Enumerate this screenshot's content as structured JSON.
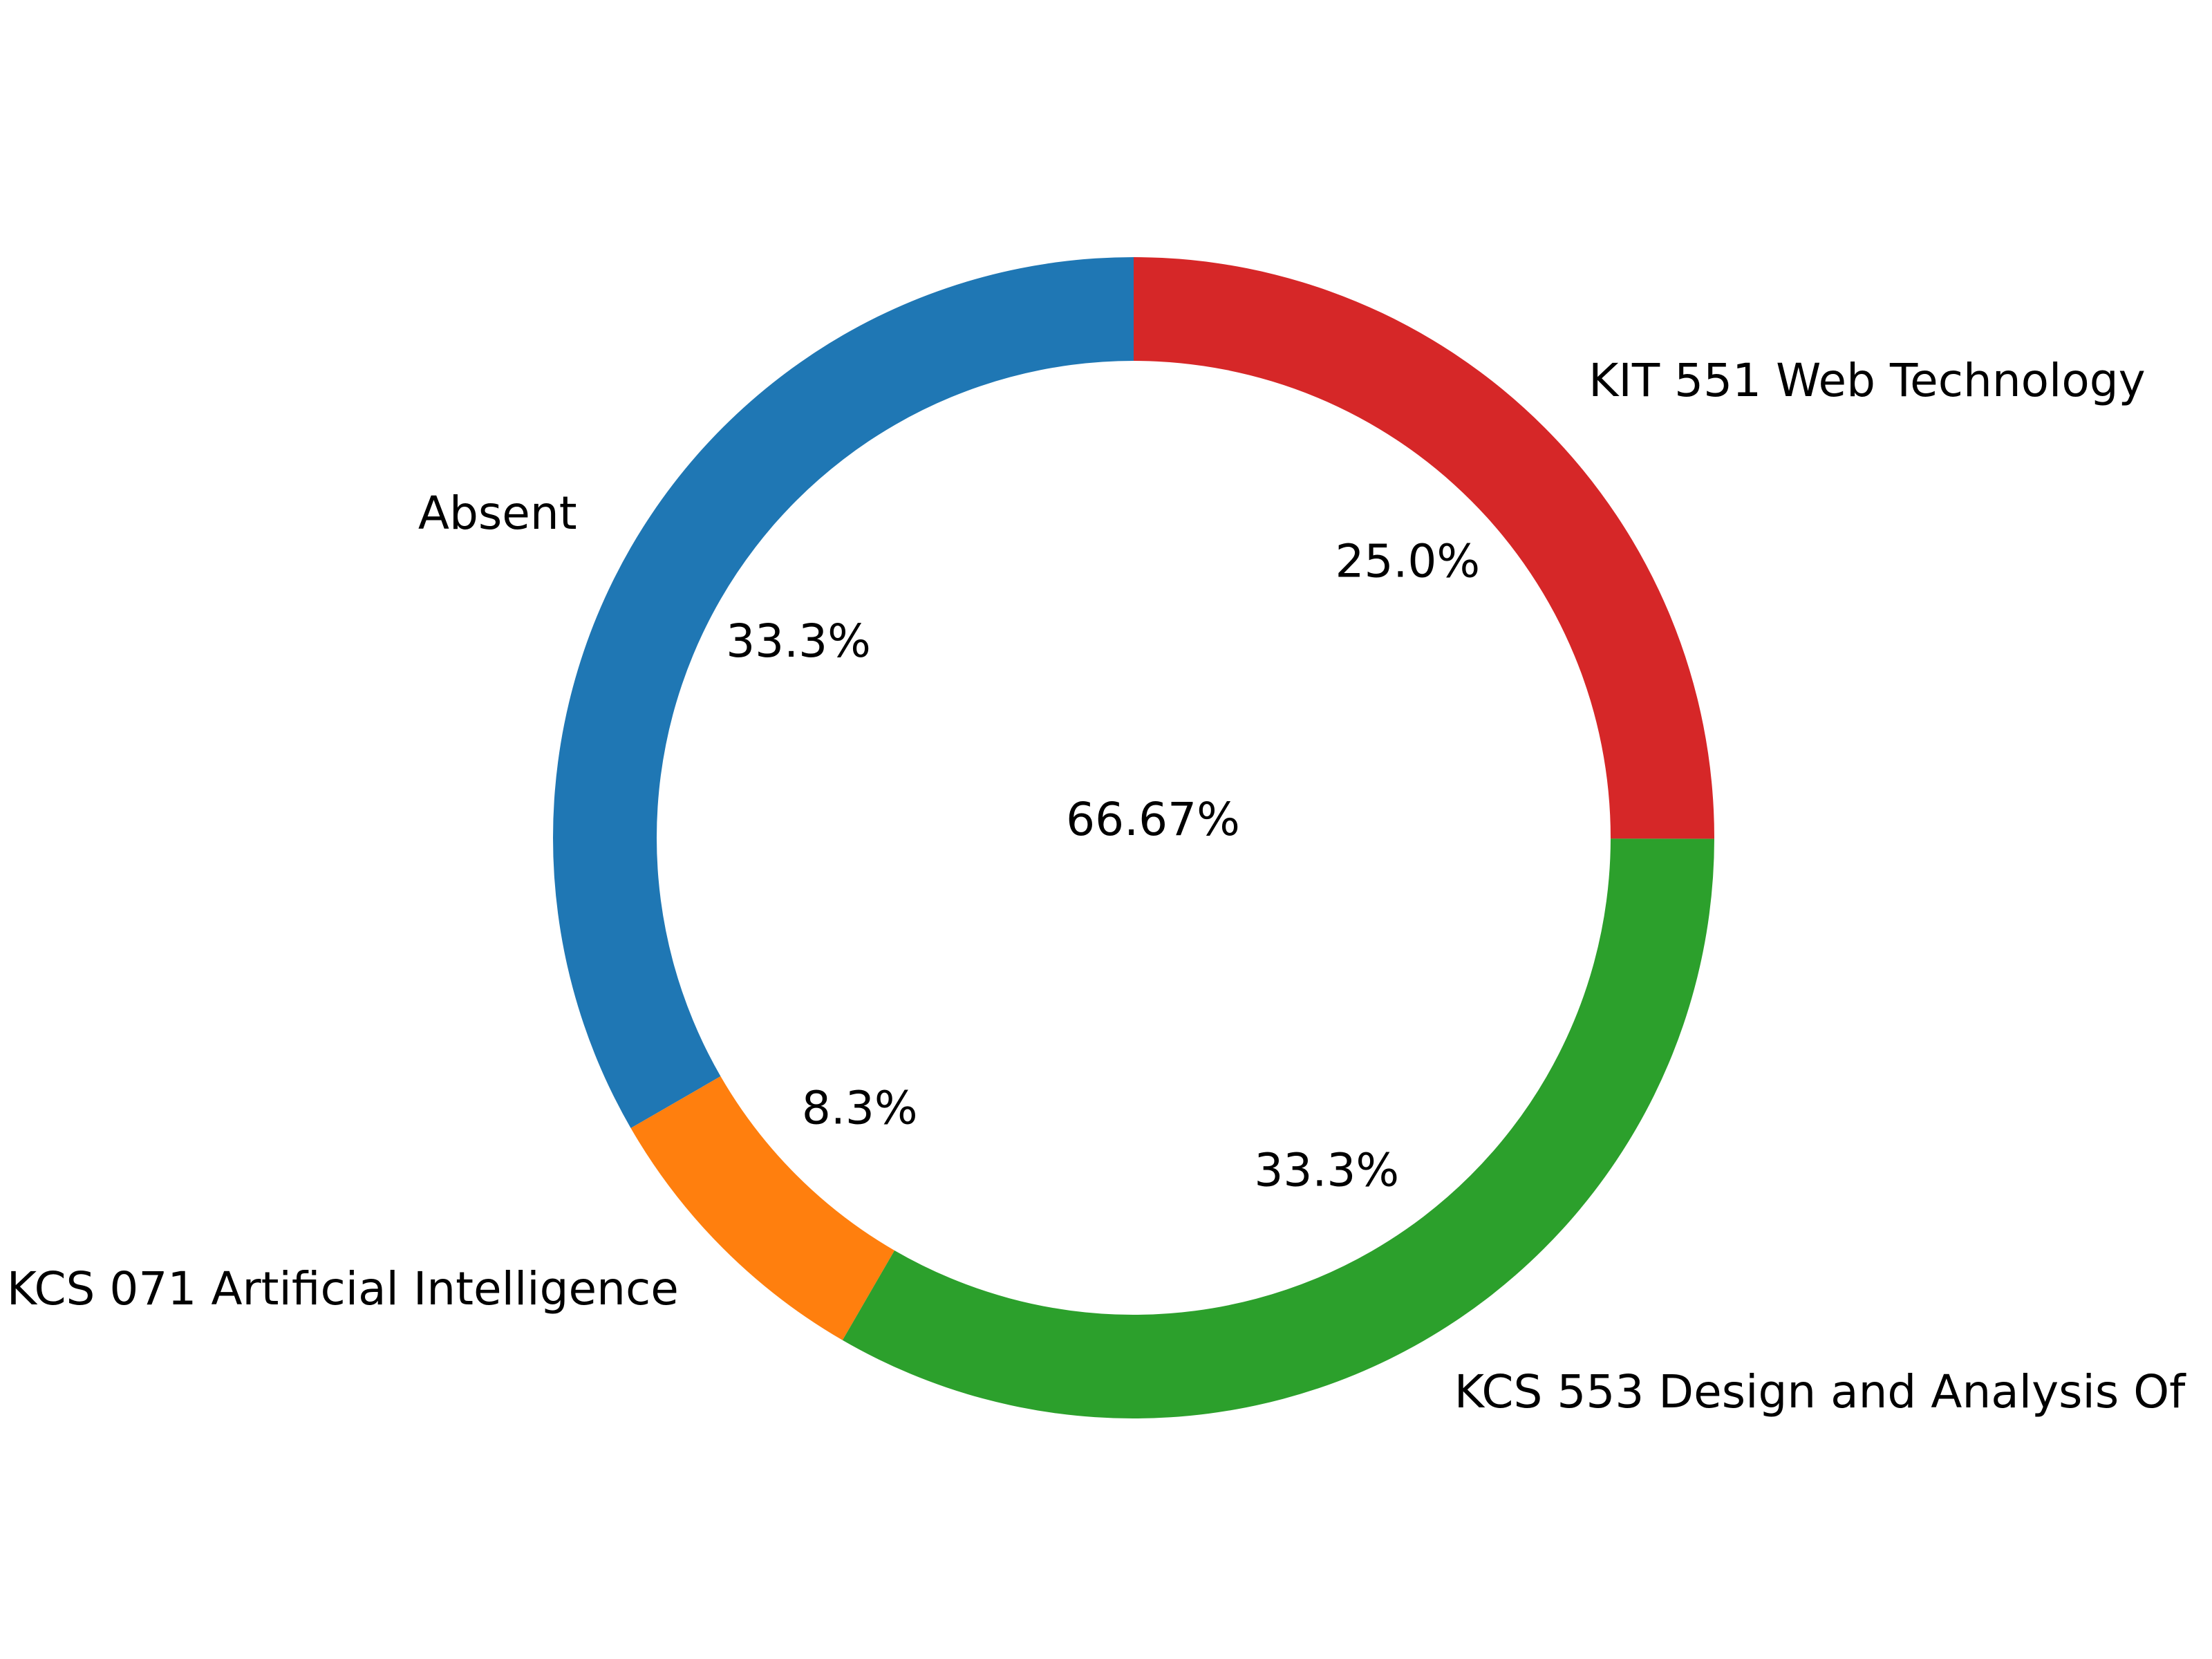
{
  "chart_data": {
    "type": "pie",
    "variant": "donut",
    "categories": [
      "Absent",
      "KCS 071 Artificial Intelligence",
      "KCS 553 Design and Analysis Of",
      "KIT 551 Web Technology"
    ],
    "values": [
      33.3,
      8.3,
      33.3,
      25.0
    ],
    "percent_labels": [
      "33.3%",
      "8.3%",
      "33.3%",
      "25.0%"
    ],
    "colors": [
      "#1f77b4",
      "#ff7f0e",
      "#2ca02c",
      "#d62728"
    ],
    "center_label": "66.67%",
    "start_angle_deg": 90,
    "direction": "counterclockwise",
    "legend": "none",
    "grid": false
  }
}
